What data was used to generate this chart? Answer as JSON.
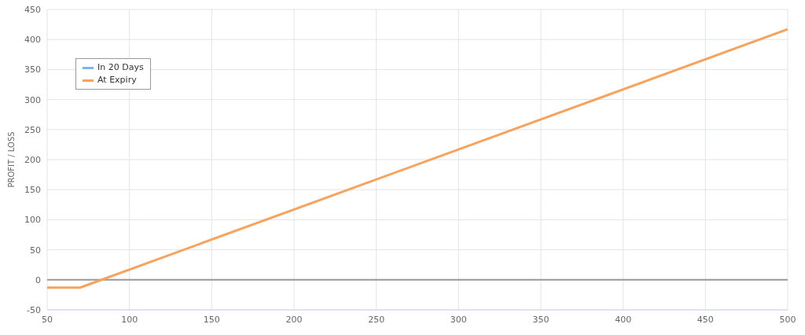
{
  "chart_data": {
    "type": "line",
    "ylabel": "PROFIT / LOSS",
    "x": [
      50,
      70,
      500
    ],
    "series": [
      {
        "name": "In 20 Days",
        "color": "#7cb5ec",
        "values": [
          null,
          null,
          null
        ]
      },
      {
        "name": "At Expiry",
        "color": "#f7a35c",
        "values": [
          -13,
          -13,
          417
        ]
      }
    ],
    "xlim": [
      50,
      500
    ],
    "xticks": [
      50,
      100,
      150,
      200,
      250,
      300,
      350,
      400,
      450,
      500
    ],
    "ylim": [
      -50,
      450
    ],
    "yticks": [
      -50,
      0,
      50,
      100,
      150,
      200,
      250,
      300,
      350,
      400,
      450
    ],
    "ref_lines": [
      {
        "axis": "y",
        "value": 0,
        "color": "#999999"
      }
    ],
    "grid": true,
    "legend": "top left",
    "marker": "none",
    "line_style": "solid"
  }
}
